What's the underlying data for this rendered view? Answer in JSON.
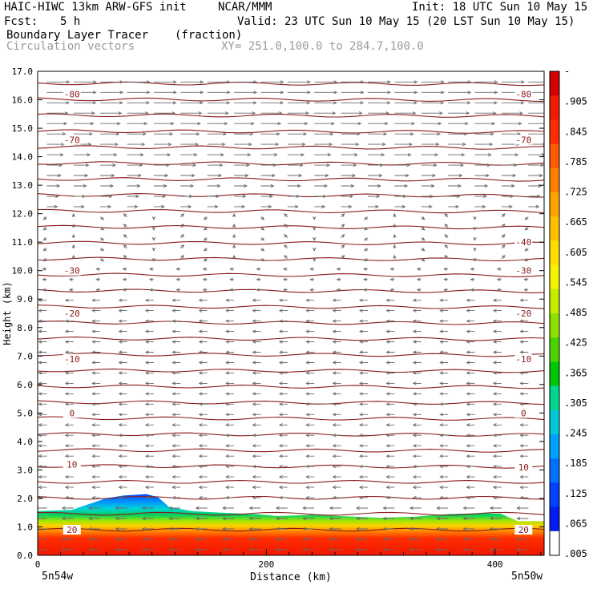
{
  "header": {
    "title_left": "HAIC-HIWC 13km ARW-GFS init",
    "org": "NCAR/MMM",
    "init": "Init: 18 UTC Sun 10 May 15",
    "fcst_label": "Fcst:",
    "fcst_value": "5 h",
    "valid": "Valid: 23 UTC Sun 10 May 15 (20 LST Sun 10 May 15)",
    "field_name": "Boundary Layer Tracer",
    "field_units": "(fraction)",
    "vectors_label": "Circulation vectors",
    "xy_label": "XY= 251.0,100.0 to 284.7,100.0"
  },
  "chart_data": {
    "type": "contour-cross-section",
    "ylabel": "Height (km)",
    "xlabel": "Distance (km)",
    "ylim": [
      0,
      17
    ],
    "xlim": [
      0,
      443
    ],
    "y_ticks": [
      "0.0",
      "1.0",
      "2.0",
      "3.0",
      "4.0",
      "5.0",
      "6.0",
      "7.0",
      "8.0",
      "9.0",
      "10.0",
      "11.0",
      "12.0",
      "13.0",
      "14.0",
      "15.0",
      "16.0",
      "17.0"
    ],
    "x_ticks": [
      {
        "value": 0,
        "label": "0"
      },
      {
        "value": 200,
        "label": "200"
      },
      {
        "value": 400,
        "label": "400"
      }
    ],
    "x_end_labels": {
      "left": "5n54w",
      "right": "5n50w"
    },
    "tracer_top_km": [
      [
        0,
        1.55
      ],
      [
        30,
        1.6
      ],
      [
        45,
        1.8
      ],
      [
        60,
        2.0
      ],
      [
        75,
        2.1
      ],
      [
        95,
        2.15
      ],
      [
        105,
        2.05
      ],
      [
        115,
        1.7
      ],
      [
        135,
        1.55
      ],
      [
        160,
        1.5
      ],
      [
        190,
        1.45
      ],
      [
        210,
        1.38
      ],
      [
        240,
        1.42
      ],
      [
        265,
        1.38
      ],
      [
        300,
        1.32
      ],
      [
        330,
        1.36
      ],
      [
        360,
        1.45
      ],
      [
        390,
        1.48
      ],
      [
        405,
        1.46
      ],
      [
        420,
        1.2
      ],
      [
        443,
        1.2
      ]
    ],
    "temperature_contour_labels": [
      {
        "value": "-80",
        "left_km": 16.2,
        "right_km": 16.2
      },
      {
        "value": "-70",
        "left_km": 14.6,
        "right_km": 14.6
      },
      {
        "value": "-40",
        "left_km": null,
        "right_km": 11.0
      },
      {
        "value": "-30",
        "left_km": 10.0,
        "right_km": 10.0
      },
      {
        "value": "-20",
        "left_km": 8.5,
        "right_km": 8.5
      },
      {
        "value": "-10",
        "left_km": 6.9,
        "right_km": 6.9
      },
      {
        "value": "0",
        "left_km": 5.0,
        "right_km": 5.0
      },
      {
        "value": "10",
        "left_km": 3.2,
        "right_km": 3.1
      },
      {
        "value": "20",
        "left_km": 0.9,
        "right_km": 0.9
      }
    ],
    "colorbar": {
      "labels": [
        "-",
        ".905",
        ".845",
        ".785",
        ".725",
        ".665",
        ".605",
        ".545",
        ".485",
        ".425",
        ".365",
        ".305",
        ".245",
        ".185",
        ".125",
        ".065",
        ".005"
      ],
      "colors": [
        "#d50000",
        "#ee1c00",
        "#ff2d00",
        "#ff5a00",
        "#ff8000",
        "#ffa300",
        "#ffc000",
        "#ffde00",
        "#f4f400",
        "#c4ec00",
        "#8ee000",
        "#4cd400",
        "#00c800",
        "#00d68c",
        "#00c8d8",
        "#00a0ff",
        "#0070ff",
        "#0040ff",
        "#001cf0",
        "#ffffff"
      ]
    }
  }
}
